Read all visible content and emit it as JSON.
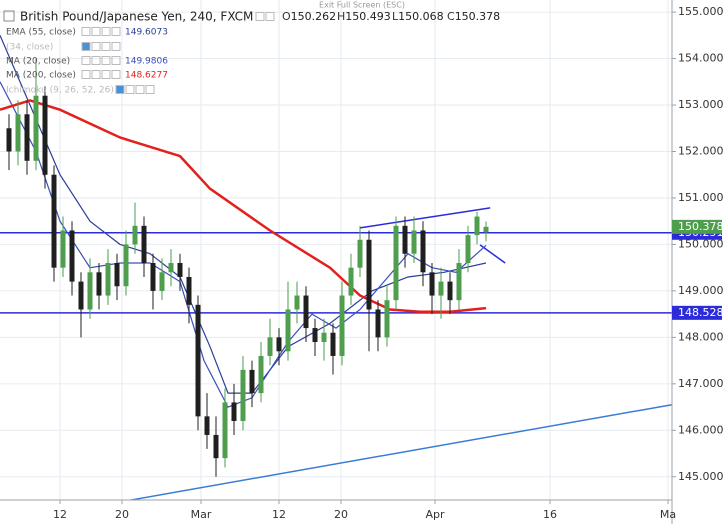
{
  "chart_data": {
    "type": "candlestick",
    "title": "British Pound/Japanese Yen, 240, FXCM",
    "notice": "Exit Full Screen (ESC)",
    "ohlc_legend": [
      {
        "label": "O",
        "value": 150.262
      },
      {
        "label": "H",
        "value": 150.493
      },
      {
        "label": "L",
        "value": 150.068
      },
      {
        "label": "C",
        "value": 150.378
      }
    ],
    "up_color": "#4e9e4e",
    "down_color": "#1f1f1f",
    "x": [
      1.5,
      3,
      4.5,
      6,
      7.5,
      9,
      10.5,
      12,
      13.5,
      15,
      16.5,
      18,
      19.5,
      21,
      22.5,
      24,
      25.5,
      27,
      28.5,
      30,
      31.5,
      33,
      34.5,
      36,
      37.5,
      39,
      40.5,
      42,
      43.5,
      45,
      46.5,
      48,
      49.5,
      51,
      52.5,
      54,
      55.5,
      57,
      58.5,
      60,
      61.5,
      63,
      64.5,
      66,
      67.5,
      69,
      70.5,
      72,
      73.5,
      75,
      76.5,
      78,
      79.5,
      81
    ],
    "open": [
      152.5,
      152.0,
      152.8,
      151.8,
      153.2,
      151.5,
      149.5,
      150.3,
      149.2,
      148.6,
      149.4,
      148.9,
      149.6,
      149.1,
      150.0,
      150.4,
      149.6,
      149.0,
      149.4,
      149.6,
      149.3,
      148.7,
      146.3,
      145.9,
      145.4,
      146.6,
      146.2,
      147.3,
      146.8,
      147.6,
      148.0,
      147.7,
      148.6,
      148.9,
      148.2,
      147.9,
      148.1,
      147.6,
      148.9,
      149.5,
      150.1,
      148.6,
      148.0,
      148.8,
      150.4,
      149.8,
      150.3,
      149.4,
      148.9,
      149.2,
      148.8,
      149.6,
      150.2,
      150.262
    ],
    "high": [
      152.8,
      153.1,
      153.1,
      154.0,
      153.4,
      151.7,
      150.6,
      150.5,
      149.4,
      149.7,
      149.6,
      149.9,
      149.8,
      150.3,
      150.9,
      150.6,
      149.8,
      149.7,
      149.9,
      149.8,
      149.5,
      148.9,
      146.8,
      146.3,
      146.9,
      147.0,
      147.6,
      147.5,
      147.9,
      148.4,
      148.2,
      149.2,
      149.2,
      149.1,
      148.4,
      148.4,
      148.3,
      149.2,
      149.8,
      150.4,
      150.3,
      148.8,
      149.1,
      150.6,
      150.6,
      150.6,
      150.5,
      149.6,
      149.5,
      149.4,
      149.9,
      150.4,
      150.7,
      150.493
    ],
    "low": [
      151.6,
      151.7,
      151.5,
      151.6,
      151.2,
      149.2,
      149.3,
      148.9,
      148.0,
      148.4,
      148.6,
      148.7,
      148.8,
      148.9,
      149.8,
      149.3,
      148.6,
      148.8,
      149.1,
      149.0,
      148.3,
      146.0,
      145.6,
      145.0,
      145.2,
      145.9,
      146.0,
      146.5,
      146.6,
      147.4,
      147.4,
      147.5,
      148.3,
      147.9,
      147.6,
      147.5,
      147.2,
      147.4,
      148.7,
      149.3,
      147.7,
      147.7,
      147.8,
      148.6,
      149.5,
      149.6,
      149.1,
      148.5,
      148.4,
      148.5,
      148.6,
      149.4,
      150.0,
      150.068
    ],
    "close": [
      152.0,
      152.8,
      151.8,
      153.2,
      151.5,
      149.5,
      150.3,
      149.2,
      148.6,
      149.4,
      148.9,
      149.6,
      149.1,
      150.0,
      150.4,
      149.6,
      149.0,
      149.4,
      149.6,
      149.3,
      148.7,
      146.3,
      145.9,
      145.4,
      146.6,
      146.2,
      147.3,
      146.8,
      147.6,
      148.0,
      147.7,
      148.6,
      148.9,
      148.2,
      147.9,
      148.1,
      147.6,
      148.9,
      149.5,
      150.1,
      148.6,
      148.0,
      148.8,
      150.4,
      149.8,
      150.3,
      149.4,
      148.9,
      149.2,
      148.8,
      149.6,
      150.2,
      150.6,
      150.378
    ],
    "series": [
      {
        "name": "EMA (55, close)",
        "color": "#2a3f9a",
        "legend_value": 149.6073,
        "x": [
          0,
          5,
          10,
          15,
          20,
          25,
          30,
          35,
          38,
          42,
          48,
          55,
          62,
          68,
          74,
          81
        ],
        "values": [
          154.5,
          153.0,
          151.5,
          150.5,
          150.0,
          149.8,
          149.3,
          147.8,
          146.8,
          146.8,
          147.8,
          148.3,
          149.0,
          149.3,
          149.4,
          149.6
        ]
      },
      {
        "name": "MA (20, close)",
        "color": "#3b4fb8",
        "legend_value": 149.9806,
        "x": [
          0,
          6,
          10,
          15,
          20,
          25,
          30,
          34,
          38,
          42,
          48,
          52,
          56,
          60,
          64,
          68,
          72,
          76,
          81
        ],
        "values": [
          153.5,
          152.0,
          150.5,
          149.5,
          149.6,
          149.6,
          149.2,
          147.5,
          146.5,
          146.7,
          147.9,
          148.5,
          148.2,
          148.6,
          149.2,
          149.8,
          149.5,
          149.4,
          149.98
        ]
      },
      {
        "name": "MA (200, close)",
        "color": "#e3201b",
        "legend_value": 148.6277,
        "x": [
          0,
          5,
          10,
          20,
          30,
          35,
          45,
          55,
          60,
          65,
          70,
          75,
          81
        ],
        "values": [
          152.9,
          153.1,
          152.9,
          152.3,
          151.9,
          151.2,
          150.3,
          149.5,
          148.9,
          148.6,
          148.55,
          148.55,
          148.63
        ]
      }
    ],
    "faded_indicators": [
      "(34, close)",
      "Ichimoku (9, 26, 52, 26)"
    ],
    "drawings": [
      {
        "color": "#3a7bd5",
        "x": [
          19.2,
          112
        ],
        "values": [
          144.44,
          146.55
        ]
      },
      {
        "color": "#2b2bd9",
        "x": [
          60,
          81.7
        ],
        "values": [
          150.355,
          150.785
        ]
      },
      {
        "color": "#2b2bd9",
        "x": [
          80,
          84.2
        ],
        "values": [
          149.99,
          149.6
        ]
      }
    ],
    "price_lines": [
      {
        "value": 150.251,
        "color": "#2b2bd9"
      },
      {
        "value": 148.528,
        "color": "#2b2bd9"
      }
    ],
    "last_price": {
      "value": 150.378,
      "color": "#4e9e4e"
    },
    "xlim": [
      0,
      112
    ],
    "ylim": [
      144.5,
      155.26
    ],
    "xticks": [
      {
        "value": 10,
        "label": "12"
      },
      {
        "value": 20.33,
        "label": "20"
      },
      {
        "value": 33.5,
        "label": "Mar"
      },
      {
        "value": 46.5,
        "label": "12"
      },
      {
        "value": 56.83,
        "label": "20"
      },
      {
        "value": 72.5,
        "label": "Apr"
      },
      {
        "value": 91.67,
        "label": "16"
      },
      {
        "value": 111.33,
        "label": "Ma"
      }
    ],
    "yticks": [
      {
        "value": 145,
        "label": "145.000"
      },
      {
        "value": 146,
        "label": "146.000"
      },
      {
        "value": 147,
        "label": "147.000"
      },
      {
        "value": 148,
        "label": "148.000"
      },
      {
        "value": 149,
        "label": "149.000"
      },
      {
        "value": 150,
        "label": "150.000"
      },
      {
        "value": 151,
        "label": "151.000"
      },
      {
        "value": 152,
        "label": "152.000"
      },
      {
        "value": 153,
        "label": "153.000"
      },
      {
        "value": 154,
        "label": "154.000"
      },
      {
        "value": 155,
        "label": "155.000"
      }
    ],
    "grid": true
  }
}
